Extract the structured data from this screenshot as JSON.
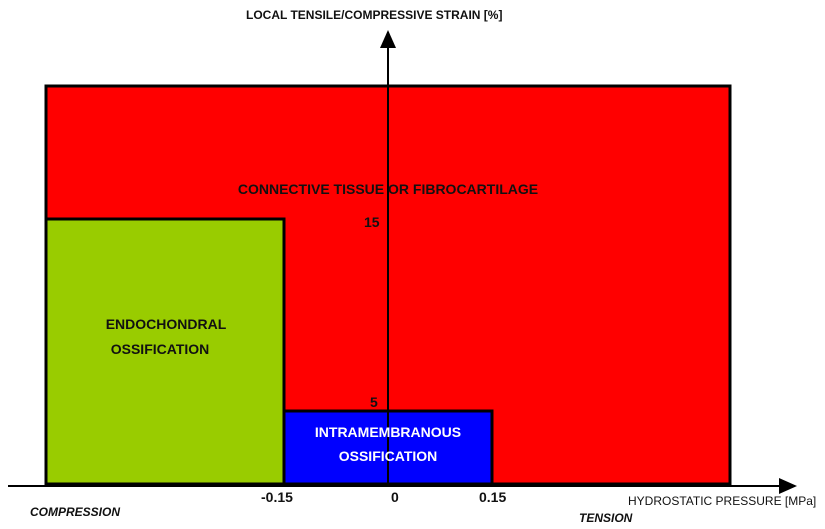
{
  "y_axis": {
    "label": "LOCAL TENSILE/COMPRESSIVE STRAIN [%]",
    "ticks": [
      "15",
      "5"
    ]
  },
  "x_axis": {
    "label": "HYDROSTATIC PRESSURE [MPa]",
    "ticks": [
      "-0.15",
      "0",
      "0.15"
    ],
    "left_label": "COMPRESSION",
    "right_label": "TENSION"
  },
  "regions": [
    {
      "label": "CONNECTIVE TISSUE OR FIBROCARTILAGE"
    },
    {
      "label_lines": [
        "ENDOCHONDRAL",
        "OSSIFICATION"
      ]
    },
    {
      "label_lines": [
        "INTRAMEMBRANOUS",
        "OSSIFICATION"
      ]
    }
  ]
}
